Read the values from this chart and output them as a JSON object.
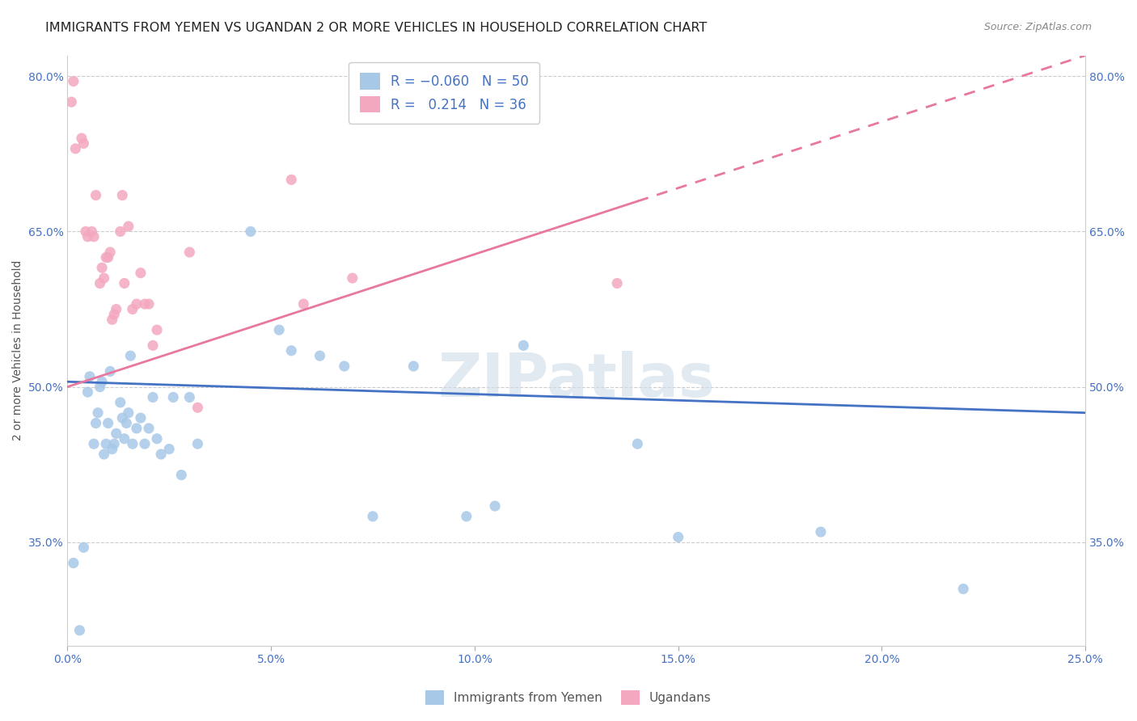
{
  "title": "IMMIGRANTS FROM YEMEN VS UGANDAN 2 OR MORE VEHICLES IN HOUSEHOLD CORRELATION CHART",
  "source": "Source: ZipAtlas.com",
  "ylabel": "2 or more Vehicles in Household",
  "xmin": 0.0,
  "xmax": 25.0,
  "ymin": 25.0,
  "ymax": 82.0,
  "xticks": [
    0.0,
    5.0,
    10.0,
    15.0,
    20.0,
    25.0
  ],
  "yticks": [
    35.0,
    50.0,
    65.0,
    80.0
  ],
  "blue_color": "#a8c8e8",
  "pink_color": "#f4a8bf",
  "blue_line_color": "#4472c4",
  "pink_line_color": "#e878a0",
  "blue_line_y0": 50.5,
  "blue_line_y1": 47.5,
  "pink_line_y0": 50.0,
  "pink_line_y1": 82.0,
  "pink_solid_xmax": 14.0,
  "blue_x": [
    0.15,
    0.4,
    0.5,
    0.55,
    0.65,
    0.7,
    0.75,
    0.8,
    0.85,
    0.9,
    0.95,
    1.0,
    1.05,
    1.1,
    1.15,
    1.2,
    1.3,
    1.35,
    1.4,
    1.45,
    1.5,
    1.55,
    1.6,
    1.7,
    1.8,
    1.9,
    2.0,
    2.1,
    2.2,
    2.3,
    2.5,
    2.6,
    2.8,
    3.0,
    3.2,
    4.5,
    5.2,
    5.5,
    6.2,
    6.8,
    7.5,
    8.5,
    9.8,
    10.5,
    11.2,
    14.0,
    15.0,
    18.5,
    22.0,
    0.3
  ],
  "blue_y": [
    33.0,
    34.5,
    49.5,
    51.0,
    44.5,
    46.5,
    47.5,
    50.0,
    50.5,
    43.5,
    44.5,
    46.5,
    51.5,
    44.0,
    44.5,
    45.5,
    48.5,
    47.0,
    45.0,
    46.5,
    47.5,
    53.0,
    44.5,
    46.0,
    47.0,
    44.5,
    46.0,
    49.0,
    45.0,
    43.5,
    44.0,
    49.0,
    41.5,
    49.0,
    44.5,
    65.0,
    55.5,
    53.5,
    53.0,
    52.0,
    37.5,
    52.0,
    37.5,
    38.5,
    54.0,
    44.5,
    35.5,
    36.0,
    30.5,
    26.5
  ],
  "pink_x": [
    0.1,
    0.15,
    0.2,
    0.35,
    0.4,
    0.45,
    0.5,
    0.6,
    0.65,
    0.7,
    0.8,
    0.85,
    0.9,
    0.95,
    1.0,
    1.05,
    1.1,
    1.15,
    1.2,
    1.3,
    1.35,
    1.4,
    1.5,
    1.6,
    1.7,
    1.8,
    1.9,
    2.0,
    2.1,
    2.2,
    3.0,
    3.2,
    5.5,
    5.8,
    7.0,
    13.5
  ],
  "pink_y": [
    77.5,
    79.5,
    73.0,
    74.0,
    73.5,
    65.0,
    64.5,
    65.0,
    64.5,
    68.5,
    60.0,
    61.5,
    60.5,
    62.5,
    62.5,
    63.0,
    56.5,
    57.0,
    57.5,
    65.0,
    68.5,
    60.0,
    65.5,
    57.5,
    58.0,
    61.0,
    58.0,
    58.0,
    54.0,
    55.5,
    63.0,
    48.0,
    70.0,
    58.0,
    60.5,
    60.0
  ],
  "watermark": "ZIPatlas",
  "title_fontsize": 11.5,
  "axis_label_fontsize": 10,
  "tick_fontsize": 10,
  "legend_fontsize": 12,
  "source_fontsize": 9
}
